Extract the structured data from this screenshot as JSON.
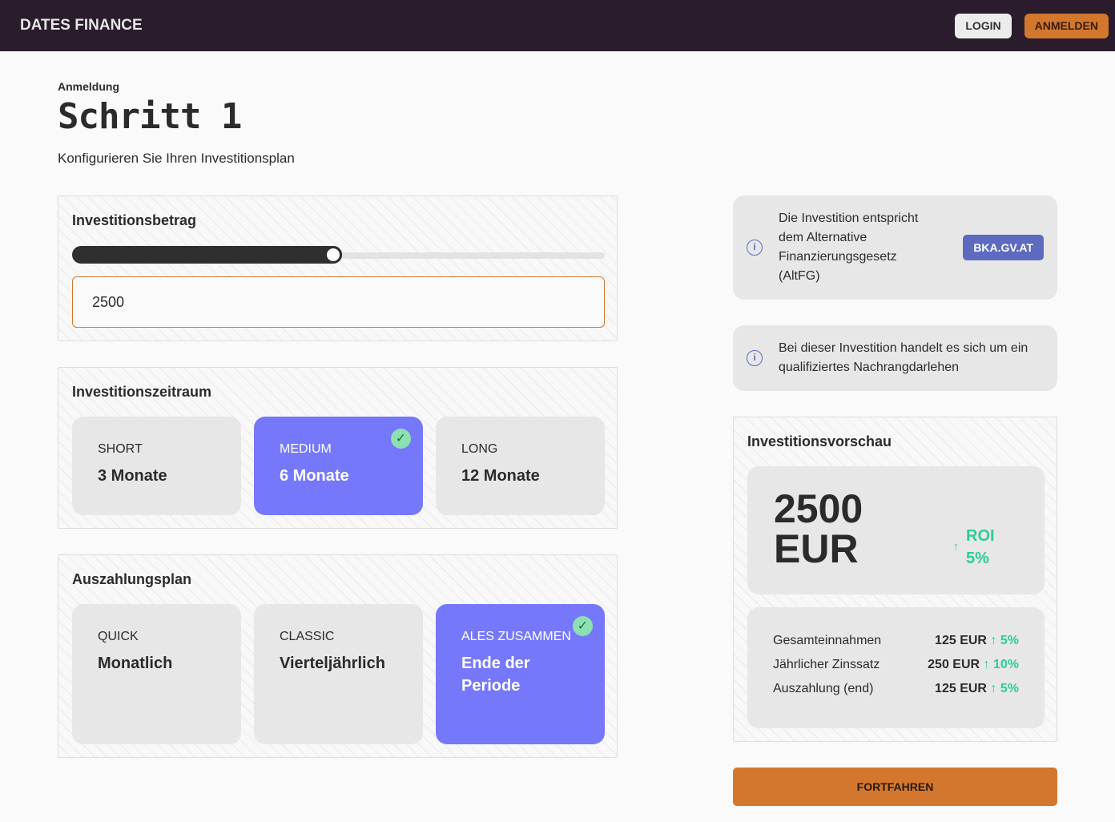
{
  "header": {
    "brand": "DATES FINANCE",
    "login": "LOGIN",
    "register": "ANMELDEN"
  },
  "page": {
    "breadcrumb": "Anmeldung",
    "title": "Schritt 1",
    "subtitle": "Konfigurieren Sie Ihren Investitionsplan"
  },
  "amount": {
    "title": "Investitionsbetrag",
    "value": "2500",
    "slider_percent": 49
  },
  "period": {
    "title": "Investitionszeitraum",
    "options": [
      {
        "key": "SHORT",
        "value": "3 Monate"
      },
      {
        "key": "MEDIUM",
        "value": "6 Monate",
        "selected": true
      },
      {
        "key": "LONG",
        "value": "12 Monate"
      }
    ]
  },
  "payout": {
    "title": "Auszahlungsplan",
    "options": [
      {
        "key": "QUICK",
        "value": "Monatlich"
      },
      {
        "key": "CLASSIC",
        "value": "Vierteljährlich"
      },
      {
        "key": "ALES ZUSAMMEN",
        "value": "Ende der Periode",
        "selected": true
      }
    ]
  },
  "info": [
    {
      "text": "Die Investition entspricht dem Alternative Finanzierungsgesetz (AltFG)",
      "button": "BKA.GV.AT"
    },
    {
      "text": "Bei dieser Investition handelt es sich um ein qualifiziertes Nachrangdarlehen"
    }
  ],
  "preview": {
    "title": "Investitionsvorschau",
    "amount": "2500",
    "currency": "EUR",
    "roi_label": "ROI",
    "roi_value": "5%",
    "rows": [
      {
        "label": "Gesamteinnahmen",
        "value": "125 EUR",
        "pct": "5%"
      },
      {
        "label": "Jährlicher Zinssatz",
        "value": "250 EUR",
        "pct": "10%"
      },
      {
        "label": "Auszahlung (end)",
        "value": "125 EUR",
        "pct": "5%"
      }
    ]
  },
  "continue": "FORTFAHREN",
  "colors": {
    "accent": "#d3772f",
    "selected": "#7678fb",
    "positive": "#2dcc98",
    "header": "#2a1c2c"
  }
}
